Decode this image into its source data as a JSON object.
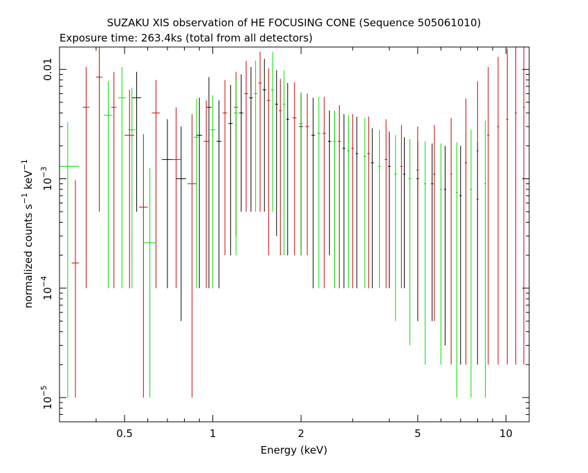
{
  "chart_data": {
    "type": "scatter",
    "title": "SUZAKU XIS observation of HE FOCUSING CONE (Sequence 505061010)",
    "subtitle": "Exposure time: 263.4ks (total from all detectors)",
    "xlabel": "Energy (keV)",
    "ylabel": {
      "base": "normalized counts s",
      "sup1": "−1",
      "mid": " keV",
      "sup2": "−1"
    },
    "x_scale": "log",
    "y_scale": "log",
    "xlim": [
      0.3,
      12
    ],
    "ylim": [
      6e-06,
      0.016
    ],
    "grid": false,
    "x_ticks": [
      {
        "value": 0.5,
        "label": "0.5"
      },
      {
        "value": 1,
        "label": "1"
      },
      {
        "value": 2,
        "label": "2"
      },
      {
        "value": 5,
        "label": "5"
      },
      {
        "value": 10,
        "label": "10"
      }
    ],
    "y_ticks": [
      {
        "value": 1e-05,
        "base": "10",
        "exp": "−5"
      },
      {
        "value": 0.0001,
        "base": "10",
        "exp": "−4"
      },
      {
        "value": 0.001,
        "base": "10",
        "exp": "−3"
      },
      {
        "value": 0.01,
        "label": "0.01"
      }
    ],
    "series": [
      {
        "color": "#000000",
        "points": [
          {
            "x": 0.55,
            "y": 0.0055,
            "xerr": 0.02,
            "yerr_lo": 0.005,
            "yerr_hi": 0.004
          },
          {
            "x": 0.7,
            "y": 0.0015,
            "xerr": 0.03,
            "yerr_lo": 0.0014,
            "yerr_hi": 0.002
          },
          {
            "x": 0.78,
            "y": 0.001,
            "xerr": 0.03,
            "yerr_lo": 0.00095,
            "yerr_hi": 0.002
          },
          {
            "x": 0.9,
            "y": 0.0025,
            "xerr": 0.02,
            "yerr_lo": 0.0024,
            "yerr_hi": 0.003
          },
          {
            "x": 0.97,
            "y": 0.0045,
            "xerr": 0.02,
            "yerr_lo": 0.0044,
            "yerr_hi": 0.004
          },
          {
            "x": 1.05,
            "y": 0.0022,
            "xerr": 0.02,
            "yerr_lo": 0.0021,
            "yerr_hi": 0.003
          },
          {
            "x": 1.15,
            "y": 0.0032,
            "xerr": 0.02,
            "yerr_lo": 0.003,
            "yerr_hi": 0.004
          },
          {
            "x": 1.25,
            "y": 0.004,
            "xerr": 0.02,
            "yerr_lo": 0.0035,
            "yerr_hi": 0.005
          },
          {
            "x": 1.35,
            "y": 0.0055,
            "xerr": 0.02,
            "yerr_lo": 0.005,
            "yerr_hi": 0.005
          },
          {
            "x": 1.5,
            "y": 0.0065,
            "xerr": 0.02,
            "yerr_lo": 0.006,
            "yerr_hi": 0.006
          },
          {
            "x": 1.65,
            "y": 0.0048,
            "xerr": 0.02,
            "yerr_lo": 0.0045,
            "yerr_hi": 0.005
          },
          {
            "x": 1.8,
            "y": 0.0035,
            "xerr": 0.02,
            "yerr_lo": 0.0033,
            "yerr_hi": 0.004
          },
          {
            "x": 2.0,
            "y": 0.003,
            "xerr": 0.03,
            "yerr_lo": 0.0028,
            "yerr_hi": 0.003
          },
          {
            "x": 2.2,
            "y": 0.0025,
            "xerr": 0.03,
            "yerr_lo": 0.0024,
            "yerr_hi": 0.003
          },
          {
            "x": 2.5,
            "y": 0.0022,
            "xerr": 0.03,
            "yerr_lo": 0.002,
            "yerr_hi": 0.002
          },
          {
            "x": 2.8,
            "y": 0.0019,
            "xerr": 0.03,
            "yerr_lo": 0.0018,
            "yerr_hi": 0.002
          },
          {
            "x": 3.1,
            "y": 0.0017,
            "xerr": 0.03,
            "yerr_lo": 0.0016,
            "yerr_hi": 0.002
          },
          {
            "x": 3.5,
            "y": 0.0014,
            "xerr": 0.04,
            "yerr_lo": 0.0013,
            "yerr_hi": 0.0015
          },
          {
            "x": 4.0,
            "y": 0.0013,
            "xerr": 0.04,
            "yerr_lo": 0.0012,
            "yerr_hi": 0.0014
          },
          {
            "x": 4.5,
            "y": 0.0011,
            "xerr": 0.04,
            "yerr_lo": 0.001,
            "yerr_hi": 0.0013
          },
          {
            "x": 5.0,
            "y": 0.001,
            "xerr": 0.05,
            "yerr_lo": 0.00095,
            "yerr_hi": 0.0012
          },
          {
            "x": 5.6,
            "y": 0.0009,
            "xerr": 0.05,
            "yerr_lo": 0.00085,
            "yerr_hi": 0.0012
          },
          {
            "x": 6.2,
            "y": 0.0008,
            "xerr": 0.05,
            "yerr_lo": 0.00077,
            "yerr_hi": 0.0012
          },
          {
            "x": 7.0,
            "y": 0.0007,
            "xerr": 0.06,
            "yerr_lo": 0.00068,
            "yerr_hi": 0.0013
          },
          {
            "x": 8.0,
            "y": 0.00065,
            "xerr": 0.06,
            "yerr_lo": 0.00063,
            "yerr_hi": 0.0015
          }
        ]
      },
      {
        "color": "#cc0000",
        "points": [
          {
            "x": 0.34,
            "y": 0.00017,
            "xerr": 0.01,
            "yerr_lo": 0.00016,
            "yerr_hi": 0.0008
          },
          {
            "x": 0.37,
            "y": 0.0045,
            "xerr": 0.01,
            "yerr_lo": 0.0044,
            "yerr_hi": 0.006
          },
          {
            "x": 0.41,
            "y": 0.0085,
            "xerr": 0.01,
            "yerr_lo": 0.008,
            "yerr_hi": 0.008
          },
          {
            "x": 0.46,
            "y": 0.0045,
            "xerr": 0.01,
            "yerr_lo": 0.0044,
            "yerr_hi": 0.005
          },
          {
            "x": 0.52,
            "y": 0.0025,
            "xerr": 0.02,
            "yerr_lo": 0.0024,
            "yerr_hi": 0.004
          },
          {
            "x": 0.58,
            "y": 0.00055,
            "xerr": 0.02,
            "yerr_lo": 0.00054,
            "yerr_hi": 0.002
          },
          {
            "x": 0.64,
            "y": 0.004,
            "xerr": 0.02,
            "yerr_lo": 0.0039,
            "yerr_hi": 0.004
          },
          {
            "x": 0.75,
            "y": 0.0015,
            "xerr": 0.03,
            "yerr_lo": 0.0014,
            "yerr_hi": 0.003
          },
          {
            "x": 0.85,
            "y": 0.0009,
            "xerr": 0.03,
            "yerr_lo": 0.00089,
            "yerr_hi": 0.003
          },
          {
            "x": 0.95,
            "y": 0.0022,
            "xerr": 0.02,
            "yerr_lo": 0.0021,
            "yerr_hi": 0.003
          },
          {
            "x": 1.1,
            "y": 0.004,
            "xerr": 0.02,
            "yerr_lo": 0.0038,
            "yerr_hi": 0.004
          },
          {
            "x": 1.2,
            "y": 0.0045,
            "xerr": 0.02,
            "yerr_lo": 0.0042,
            "yerr_hi": 0.005
          },
          {
            "x": 1.3,
            "y": 0.006,
            "xerr": 0.02,
            "yerr_lo": 0.0055,
            "yerr_hi": 0.006
          },
          {
            "x": 1.45,
            "y": 0.0075,
            "xerr": 0.02,
            "yerr_lo": 0.007,
            "yerr_hi": 0.007
          },
          {
            "x": 1.55,
            "y": 0.0052,
            "xerr": 0.02,
            "yerr_lo": 0.005,
            "yerr_hi": 0.005
          },
          {
            "x": 1.7,
            "y": 0.0042,
            "xerr": 0.02,
            "yerr_lo": 0.004,
            "yerr_hi": 0.004
          },
          {
            "x": 1.9,
            "y": 0.0036,
            "xerr": 0.03,
            "yerr_lo": 0.0034,
            "yerr_hi": 0.004
          },
          {
            "x": 2.1,
            "y": 0.003,
            "xerr": 0.03,
            "yerr_lo": 0.0028,
            "yerr_hi": 0.003
          },
          {
            "x": 2.4,
            "y": 0.0026,
            "xerr": 0.03,
            "yerr_lo": 0.0025,
            "yerr_hi": 0.003
          },
          {
            "x": 2.7,
            "y": 0.0022,
            "xerr": 0.03,
            "yerr_lo": 0.0021,
            "yerr_hi": 0.0025
          },
          {
            "x": 3.0,
            "y": 0.0019,
            "xerr": 0.03,
            "yerr_lo": 0.0018,
            "yerr_hi": 0.002
          },
          {
            "x": 3.4,
            "y": 0.0017,
            "xerr": 0.04,
            "yerr_lo": 0.0016,
            "yerr_hi": 0.002
          },
          {
            "x": 3.9,
            "y": 0.0015,
            "xerr": 0.04,
            "yerr_lo": 0.0014,
            "yerr_hi": 0.002
          },
          {
            "x": 4.4,
            "y": 0.0013,
            "xerr": 0.04,
            "yerr_lo": 0.0012,
            "yerr_hi": 0.0018
          },
          {
            "x": 5.0,
            "y": 0.0012,
            "xerr": 0.05,
            "yerr_lo": 0.00115,
            "yerr_hi": 0.0018
          },
          {
            "x": 5.7,
            "y": 0.0011,
            "xerr": 0.05,
            "yerr_lo": 0.00105,
            "yerr_hi": 0.002
          },
          {
            "x": 6.5,
            "y": 0.0011,
            "xerr": 0.05,
            "yerr_lo": 0.00108,
            "yerr_hi": 0.0025
          },
          {
            "x": 7.3,
            "y": 0.0014,
            "xerr": 0.06,
            "yerr_lo": 0.00138,
            "yerr_hi": 0.004
          },
          {
            "x": 8.0,
            "y": 0.0018,
            "xerr": 0.06,
            "yerr_lo": 0.00178,
            "yerr_hi": 0.006
          },
          {
            "x": 8.7,
            "y": 0.0025,
            "xerr": 0.07,
            "yerr_lo": 0.00248,
            "yerr_hi": 0.008
          },
          {
            "x": 9.4,
            "y": 0.003,
            "xerr": 0.07,
            "yerr_lo": 0.00298,
            "yerr_hi": 0.01
          },
          {
            "x": 10.1,
            "y": 0.0035,
            "xerr": 0.08,
            "yerr_lo": 0.00348,
            "yerr_hi": 0.012
          },
          {
            "x": 10.8,
            "y": 0.004,
            "xerr": 0.08,
            "yerr_lo": 0.00398,
            "yerr_hi": 0.012
          },
          {
            "x": 11.5,
            "y": 0.0045,
            "xerr": 0.08,
            "yerr_lo": 0.00448,
            "yerr_hi": 0.012
          }
        ]
      },
      {
        "color": "#00dd00",
        "points": [
          {
            "x": 0.32,
            "y": 0.0013,
            "xerr": 0.03,
            "yerr_lo": 0.00129,
            "yerr_hi": 0.002
          },
          {
            "x": 0.44,
            "y": 0.0038,
            "xerr": 0.015,
            "yerr_lo": 0.0037,
            "yerr_hi": 0.004
          },
          {
            "x": 0.49,
            "y": 0.0055,
            "xerr": 0.015,
            "yerr_lo": 0.0054,
            "yerr_hi": 0.005
          },
          {
            "x": 0.53,
            "y": 0.0028,
            "xerr": 0.015,
            "yerr_lo": 0.0027,
            "yerr_hi": 0.004
          },
          {
            "x": 0.61,
            "y": 0.00026,
            "xerr": 0.03,
            "yerr_lo": 0.00025,
            "yerr_hi": 0.001
          },
          {
            "x": 0.88,
            "y": 0.0024,
            "xerr": 0.02,
            "yerr_lo": 0.0023,
            "yerr_hi": 0.003
          },
          {
            "x": 1.0,
            "y": 0.0028,
            "xerr": 0.02,
            "yerr_lo": 0.0027,
            "yerr_hi": 0.003
          },
          {
            "x": 1.2,
            "y": 0.004,
            "xerr": 0.02,
            "yerr_lo": 0.0038,
            "yerr_hi": 0.004
          },
          {
            "x": 1.4,
            "y": 0.006,
            "xerr": 0.02,
            "yerr_lo": 0.0055,
            "yerr_hi": 0.006
          },
          {
            "x": 1.6,
            "y": 0.0065,
            "xerr": 0.02,
            "yerr_lo": 0.006,
            "yerr_hi": 0.008
          },
          {
            "x": 1.75,
            "y": 0.0048,
            "xerr": 0.02,
            "yerr_lo": 0.0046,
            "yerr_hi": 0.005
          },
          {
            "x": 2.0,
            "y": 0.0032,
            "xerr": 0.03,
            "yerr_lo": 0.003,
            "yerr_hi": 0.003
          },
          {
            "x": 2.3,
            "y": 0.0026,
            "xerr": 0.03,
            "yerr_lo": 0.0025,
            "yerr_hi": 0.003
          },
          {
            "x": 2.6,
            "y": 0.0022,
            "xerr": 0.03,
            "yerr_lo": 0.0021,
            "yerr_hi": 0.002
          },
          {
            "x": 2.9,
            "y": 0.0018,
            "xerr": 0.03,
            "yerr_lo": 0.0017,
            "yerr_hi": 0.002
          },
          {
            "x": 3.3,
            "y": 0.0016,
            "xerr": 0.04,
            "yerr_lo": 0.0015,
            "yerr_hi": 0.002
          },
          {
            "x": 3.7,
            "y": 0.0013,
            "xerr": 0.04,
            "yerr_lo": 0.0012,
            "yerr_hi": 0.0015
          },
          {
            "x": 4.2,
            "y": 0.0011,
            "xerr": 0.04,
            "yerr_lo": 0.00105,
            "yerr_hi": 0.0014
          },
          {
            "x": 4.7,
            "y": 0.001,
            "xerr": 0.05,
            "yerr_lo": 0.00097,
            "yerr_hi": 0.0013
          },
          {
            "x": 5.3,
            "y": 0.0009,
            "xerr": 0.05,
            "yerr_lo": 0.00088,
            "yerr_hi": 0.0013
          },
          {
            "x": 6.0,
            "y": 0.0008,
            "xerr": 0.05,
            "yerr_lo": 0.00078,
            "yerr_hi": 0.0013
          },
          {
            "x": 6.8,
            "y": 0.00075,
            "xerr": 0.06,
            "yerr_lo": 0.00074,
            "yerr_hi": 0.0014
          },
          {
            "x": 7.6,
            "y": 0.0008,
            "xerr": 0.06,
            "yerr_lo": 0.00079,
            "yerr_hi": 0.002
          },
          {
            "x": 8.5,
            "y": 0.0009,
            "xerr": 0.07,
            "yerr_lo": 0.00089,
            "yerr_hi": 0.0025
          }
        ]
      }
    ]
  }
}
